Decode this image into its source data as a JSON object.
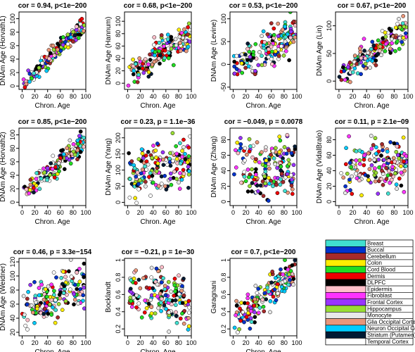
{
  "chart_data": [
    {
      "type": "scatter",
      "title": "cor = 0.94, p<1e−200",
      "xlabel": "Chron. Age",
      "ylabel": "DNAm Age (Horvath1)",
      "xlim": [
        -5,
        100
      ],
      "ylim": [
        -5,
        110
      ],
      "xticks": [
        0,
        20,
        40,
        60,
        80,
        100
      ],
      "yticks": [
        0,
        20,
        40,
        60,
        80,
        100
      ],
      "corr": 0.94,
      "lo": 0,
      "hi": 95
    },
    {
      "type": "scatter",
      "title": "cor = 0.68, p<1e−200",
      "xlabel": "Chron. Age",
      "ylabel": "DNAm Age (Hannum)",
      "xlim": [
        -5,
        100
      ],
      "ylim": [
        -10,
        115
      ],
      "xticks": [
        0,
        20,
        40,
        60,
        80,
        100
      ],
      "yticks": [
        0,
        20,
        40,
        60,
        80,
        100
      ],
      "corr": 0.68,
      "lo": 0,
      "hi": 95
    },
    {
      "type": "scatter",
      "title": "cor = 0.53, p<1e−200",
      "xlabel": "Chron. Age",
      "ylabel": "DNAm Age (Levine)",
      "xlim": [
        -5,
        100
      ],
      "ylim": [
        -55,
        115
      ],
      "xticks": [
        0,
        20,
        40,
        60,
        80,
        100
      ],
      "yticks": [
        -50,
        0,
        50,
        100
      ],
      "corr": 0.53,
      "lo": -45,
      "hi": 105
    },
    {
      "type": "scatter",
      "title": "cor = 0.67, p<1e−200",
      "xlabel": "Chron. Age",
      "ylabel": "DNAm Age (Lin)",
      "xlim": [
        -5,
        100
      ],
      "ylim": [
        -15,
        125
      ],
      "xticks": [
        0,
        20,
        40,
        60,
        80,
        100
      ],
      "yticks": [
        0,
        50,
        100
      ],
      "corr": 0.67,
      "lo": -10,
      "hi": 115
    },
    {
      "type": "scatter",
      "title": "cor = 0.85, p<1e−200",
      "xlabel": "Chron. Age",
      "ylabel": "DNAm Age (Horvath2)",
      "xlim": [
        -5,
        100
      ],
      "ylim": [
        -5,
        110
      ],
      "xticks": [
        0,
        20,
        40,
        60,
        80,
        100
      ],
      "yticks": [
        0,
        20,
        40,
        60,
        80,
        100
      ],
      "corr": 0.85,
      "lo": 0,
      "hi": 100
    },
    {
      "type": "scatter",
      "title": "cor = 0.23, p = 1.1e−36",
      "xlabel": "Chron. Age",
      "ylabel": "DNAm Age (Yang)",
      "xlim": [
        -5,
        100
      ],
      "ylim": [
        -10,
        230
      ],
      "xticks": [
        0,
        20,
        40,
        60,
        80,
        100
      ],
      "yticks": [
        0,
        50,
        100,
        150,
        200
      ],
      "corr": 0.23,
      "lo": 0,
      "hi": 210
    },
    {
      "type": "scatter",
      "title": "cor = −0.049, p = 0.0078",
      "xlabel": "Chron. Age",
      "ylabel": "DNAm Age (Zhang)",
      "xlim": [
        -5,
        100
      ],
      "ylim": [
        -5,
        95
      ],
      "xticks": [
        0,
        20,
        40,
        60,
        80,
        100
      ],
      "yticks": [
        0,
        20,
        40,
        60,
        80
      ],
      "corr": -0.05,
      "lo": 0,
      "hi": 88
    },
    {
      "type": "scatter",
      "title": "cor = 0.11, p = 2.1e−09",
      "xlabel": "Chron. Age",
      "ylabel": "DNAm Age (VidalBralo)",
      "xlim": [
        -5,
        100
      ],
      "ylim": [
        -5,
        95
      ],
      "xticks": [
        0,
        20,
        40,
        60,
        80,
        100
      ],
      "yticks": [
        0,
        20,
        40,
        60,
        80
      ],
      "corr": 0.11,
      "lo": 5,
      "hi": 88
    },
    {
      "type": "scatter",
      "title": "cor = 0.46, p = 3.3e−154",
      "xlabel": "Chron. Age",
      "ylabel": "DNAm Age (Weidner)",
      "xlim": [
        -5,
        100
      ],
      "ylim": [
        15,
        125
      ],
      "xticks": [
        0,
        20,
        40,
        60,
        80,
        100
      ],
      "yticks": [
        20,
        40,
        60,
        80,
        100,
        120
      ],
      "corr": 0.46,
      "lo": 20,
      "hi": 120
    },
    {
      "type": "scatter",
      "title": "cor = −0.21, p = 1e−30",
      "xlabel": "Chron. Age",
      "ylabel": "Bocklandt",
      "xlim": [
        -5,
        100
      ],
      "ylim": [
        0.12,
        1.02
      ],
      "xticks": [
        0,
        20,
        40,
        60,
        80,
        100
      ],
      "yticks": [
        0.2,
        0.4,
        0.6,
        0.8,
        1.0
      ],
      "corr": -0.21,
      "lo": 0.15,
      "hi": 1.0
    },
    {
      "type": "scatter",
      "title": "cor = 0.7, p<1e−200",
      "xlabel": "Chron. Age",
      "ylabel": "Garagnani",
      "xlim": [
        -5,
        100
      ],
      "ylim": [
        0.12,
        1.02
      ],
      "xticks": [
        0,
        20,
        40,
        60,
        80,
        100
      ],
      "yticks": [
        0.2,
        0.4,
        0.6,
        0.8,
        1.0
      ],
      "corr": 0.7,
      "lo": 0.15,
      "hi": 1.0
    }
  ],
  "legend": [
    {
      "name": "Breast",
      "color": "#40e0d0"
    },
    {
      "name": "Buccal",
      "color": "#0033cc"
    },
    {
      "name": "Cerebellum",
      "color": "#a52a2a"
    },
    {
      "name": "Colon",
      "color": "#ffee00"
    },
    {
      "name": "Cord Blood",
      "color": "#22dd22"
    },
    {
      "name": "Dermis",
      "color": "#ee0000"
    },
    {
      "name": "DLPFC",
      "color": "#000000"
    },
    {
      "name": "Epidermis",
      "color": "#ffc0cb"
    },
    {
      "name": "Fibroblast",
      "color": "#ff33ff"
    },
    {
      "name": "Frontal Cortex",
      "color": "#9933ff"
    },
    {
      "name": "Hippocampus",
      "color": "#99dd33"
    },
    {
      "name": "Monocyte",
      "color": "#e8e8e8"
    },
    {
      "name": "Glia Occipital Cortex",
      "color": "#e9967a"
    },
    {
      "name": "Neuron Occipital Cortex",
      "color": "#00ccff"
    },
    {
      "name": "Striatum (Putamen)",
      "color": "#001a33"
    },
    {
      "name": "Temporal Cortex",
      "color": "#ffffff"
    }
  ]
}
